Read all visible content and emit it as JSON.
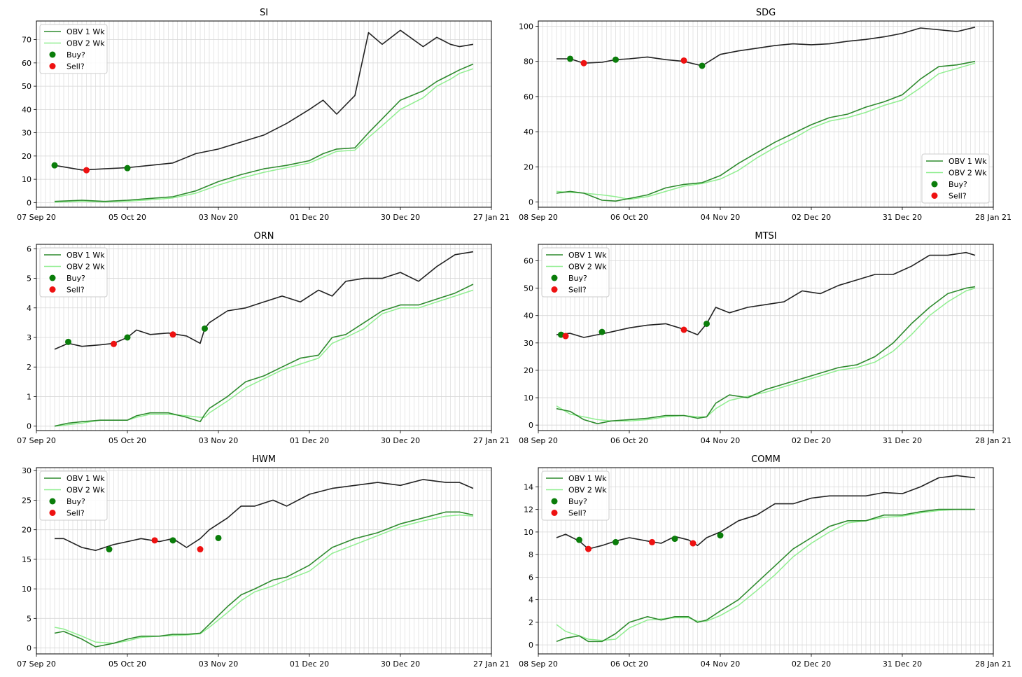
{
  "chart_data": [
    {
      "type": "line",
      "title": "SI",
      "x_ticks": [
        "07 Sep 20",
        "05 Oct 20",
        "03 Nov 20",
        "01 Dec 20",
        "30 Dec 20",
        "27 Jan 21"
      ],
      "ylim": [
        -2,
        78
      ],
      "y_ticks": [
        0,
        10,
        20,
        30,
        40,
        50,
        60,
        70
      ],
      "legend_position": "upper left",
      "legend": [
        "OBV 1 Wk",
        "OBV 2 Wk",
        "Buy?",
        "Sell?"
      ],
      "colors": {
        "price": "#222222",
        "obv1": "#2e8b2e",
        "obv2": "#90ee90",
        "buy": "#0a7d0a",
        "sell": "#ee1111"
      },
      "x": [
        0.04,
        0.1,
        0.15,
        0.2,
        0.25,
        0.3,
        0.35,
        0.4,
        0.45,
        0.5,
        0.55,
        0.6,
        0.63,
        0.66,
        0.7,
        0.73,
        0.76,
        0.8,
        0.85,
        0.88,
        0.91,
        0.93,
        0.96
      ],
      "price": [
        16,
        14,
        14.5,
        15,
        16,
        17,
        21,
        23,
        26,
        29,
        34,
        40,
        44,
        38,
        46,
        73,
        68,
        74,
        67,
        71,
        68,
        67,
        68
      ],
      "obv1": [
        0.5,
        1,
        0.5,
        1,
        1.8,
        2.5,
        5,
        9,
        12,
        14.5,
        16,
        18,
        21,
        23,
        23.5,
        30,
        36,
        44,
        48,
        52,
        55,
        57,
        59.5
      ],
      "obv2": [
        0.2,
        0.6,
        0.3,
        0.6,
        1.2,
        2,
        4,
        7.5,
        10.5,
        13,
        15,
        17,
        19.5,
        22,
        22.5,
        28,
        33,
        40,
        45,
        50,
        53,
        55.5,
        57.5
      ],
      "buy": [
        [
          0.04,
          16
        ],
        [
          0.2,
          14.8
        ]
      ],
      "sell": [
        [
          0.11,
          13.9
        ]
      ]
    },
    {
      "type": "line",
      "title": "SDG",
      "x_ticks": [
        "08 Sep 20",
        "06 Oct 20",
        "04 Nov 20",
        "02 Dec 20",
        "31 Dec 20",
        "28 Jan 21"
      ],
      "ylim": [
        -3,
        103
      ],
      "y_ticks": [
        0,
        20,
        40,
        60,
        80,
        100
      ],
      "legend_position": "lower right",
      "legend": [
        "OBV 1 Wk",
        "OBV 2 Wk",
        "Buy?",
        "Sell?"
      ],
      "colors": {
        "price": "#222222",
        "obv1": "#2e8b2e",
        "obv2": "#90ee90",
        "buy": "#0a7d0a",
        "sell": "#ee1111"
      },
      "x": [
        0.04,
        0.07,
        0.1,
        0.14,
        0.17,
        0.2,
        0.24,
        0.28,
        0.32,
        0.36,
        0.4,
        0.44,
        0.48,
        0.52,
        0.56,
        0.6,
        0.64,
        0.68,
        0.72,
        0.76,
        0.8,
        0.84,
        0.88,
        0.92,
        0.96
      ],
      "price": [
        81.5,
        81.5,
        79,
        79.5,
        81,
        81.5,
        82.5,
        81,
        80,
        77.5,
        84,
        86,
        87.5,
        89,
        90,
        89.5,
        90,
        91.5,
        92.5,
        94,
        96,
        99,
        98,
        97,
        99.5
      ],
      "obv1": [
        5,
        6,
        5,
        1,
        0.5,
        2,
        4,
        8,
        10,
        11,
        15,
        22,
        28,
        34,
        39,
        44,
        48,
        50,
        54,
        57,
        61,
        70,
        77,
        78,
        80
      ],
      "obv2": [
        6,
        5.5,
        5,
        4,
        3,
        1.5,
        3,
        6,
        9,
        10.5,
        13,
        18,
        25,
        31,
        36,
        42,
        46,
        48,
        51,
        55,
        58,
        65,
        73,
        76,
        79
      ],
      "buy": [
        [
          0.07,
          81.5
        ],
        [
          0.17,
          81
        ],
        [
          0.36,
          77.5
        ]
      ],
      "sell": [
        [
          0.1,
          79
        ],
        [
          0.32,
          80.5
        ]
      ]
    },
    {
      "type": "line",
      "title": "ORN",
      "x_ticks": [
        "07 Sep 20",
        "05 Oct 20",
        "03 Nov 20",
        "01 Dec 20",
        "30 Dec 20",
        "27 Jan 21"
      ],
      "ylim": [
        -0.15,
        6.15
      ],
      "y_ticks": [
        0,
        1,
        2,
        3,
        4,
        5,
        6
      ],
      "legend_position": "upper left",
      "legend": [
        "OBV 1 Wk",
        "OBV 2 Wk",
        "Buy?",
        "Sell?"
      ],
      "colors": {
        "price": "#222222",
        "obv1": "#2e8b2e",
        "obv2": "#90ee90",
        "buy": "#0a7d0a",
        "sell": "#ee1111"
      },
      "x": [
        0.04,
        0.07,
        0.1,
        0.14,
        0.17,
        0.2,
        0.22,
        0.25,
        0.29,
        0.33,
        0.36,
        0.37,
        0.38,
        0.42,
        0.46,
        0.5,
        0.54,
        0.58,
        0.62,
        0.65,
        0.68,
        0.72,
        0.76,
        0.8,
        0.84,
        0.88,
        0.92,
        0.96
      ],
      "price": [
        2.6,
        2.8,
        2.7,
        2.75,
        2.8,
        3.0,
        3.25,
        3.1,
        3.15,
        3.05,
        2.8,
        3.3,
        3.5,
        3.9,
        4.0,
        4.2,
        4.4,
        4.2,
        4.6,
        4.4,
        4.9,
        5.0,
        5.0,
        5.2,
        4.9,
        5.4,
        5.8,
        5.9
      ],
      "obv1": [
        0,
        0.1,
        0.15,
        0.2,
        0.2,
        0.2,
        0.35,
        0.45,
        0.45,
        0.3,
        0.15,
        0.4,
        0.6,
        1.0,
        1.5,
        1.7,
        2.0,
        2.3,
        2.4,
        3.0,
        3.1,
        3.5,
        3.9,
        4.1,
        4.1,
        4.3,
        4.5,
        4.8
      ],
      "obv2": [
        0,
        0.05,
        0.1,
        0.2,
        0.2,
        0.2,
        0.3,
        0.4,
        0.4,
        0.35,
        0.3,
        0.3,
        0.45,
        0.85,
        1.3,
        1.6,
        1.9,
        2.1,
        2.3,
        2.8,
        3.0,
        3.3,
        3.8,
        4.0,
        4.0,
        4.2,
        4.4,
        4.6
      ],
      "buy": [
        [
          0.07,
          2.85
        ],
        [
          0.2,
          3.0
        ],
        [
          0.37,
          3.3
        ]
      ],
      "sell": [
        [
          0.17,
          2.78
        ],
        [
          0.3,
          3.1
        ]
      ]
    },
    {
      "type": "line",
      "title": "MTSI",
      "x_ticks": [
        "08 Sep 20",
        "06 Oct 20",
        "04 Nov 20",
        "02 Dec 20",
        "31 Dec 20",
        "28 Jan 21"
      ],
      "ylim": [
        -2,
        66
      ],
      "y_ticks": [
        0,
        10,
        20,
        30,
        40,
        50,
        60
      ],
      "legend_position": "upper left",
      "legend": [
        "OBV 1 Wk",
        "OBV 2 Wk",
        "Buy?",
        "Sell?"
      ],
      "colors": {
        "price": "#222222",
        "obv1": "#2e8b2e",
        "obv2": "#90ee90",
        "buy": "#0a7d0a",
        "sell": "#ee1111"
      },
      "x": [
        0.04,
        0.07,
        0.1,
        0.13,
        0.16,
        0.2,
        0.24,
        0.28,
        0.32,
        0.35,
        0.37,
        0.39,
        0.42,
        0.46,
        0.5,
        0.54,
        0.58,
        0.62,
        0.66,
        0.7,
        0.74,
        0.78,
        0.82,
        0.86,
        0.9,
        0.94,
        0.96
      ],
      "price": [
        33,
        33.5,
        32,
        33,
        34,
        35.5,
        36.5,
        37,
        35,
        33,
        37,
        43,
        41,
        43,
        44,
        45,
        49,
        48,
        51,
        53,
        55,
        55,
        58,
        62,
        62,
        63,
        62
      ],
      "obv1": [
        6,
        5,
        2,
        0.5,
        1.5,
        2,
        2.5,
        3.5,
        3.5,
        2.5,
        3,
        8,
        11,
        10,
        13,
        15,
        17,
        19,
        21,
        22,
        25,
        30,
        37,
        43,
        48,
        50,
        50.5
      ],
      "obv2": [
        7,
        4,
        3,
        2,
        1.5,
        1.5,
        2,
        3,
        3.5,
        3,
        3,
        6,
        9,
        10.5,
        12,
        14,
        16,
        18,
        20,
        21,
        23,
        27,
        33,
        40,
        45,
        49,
        50
      ],
      "buy": [
        [
          0.05,
          33
        ],
        [
          0.14,
          34
        ],
        [
          0.37,
          37
        ]
      ],
      "sell": [
        [
          0.06,
          32.5
        ],
        [
          0.32,
          34.8
        ]
      ]
    },
    {
      "type": "line",
      "title": "HWM",
      "x_ticks": [
        "07 Sep 20",
        "05 Oct 20",
        "03 Nov 20",
        "01 Dec 20",
        "30 Dec 20",
        "27 Jan 21"
      ],
      "ylim": [
        -1,
        30.5
      ],
      "y_ticks": [
        0,
        5,
        10,
        15,
        20,
        25,
        30
      ],
      "legend_position": "upper left",
      "legend": [
        "OBV 1 Wk",
        "OBV 2 Wk",
        "Buy?",
        "Sell?"
      ],
      "colors": {
        "price": "#222222",
        "obv1": "#2e8b2e",
        "obv2": "#90ee90",
        "buy": "#0a7d0a",
        "sell": "#ee1111"
      },
      "x": [
        0.04,
        0.06,
        0.1,
        0.13,
        0.17,
        0.2,
        0.23,
        0.27,
        0.3,
        0.33,
        0.36,
        0.38,
        0.42,
        0.45,
        0.48,
        0.52,
        0.55,
        0.6,
        0.65,
        0.7,
        0.75,
        0.8,
        0.85,
        0.9,
        0.93,
        0.96
      ],
      "price": [
        18.5,
        18.5,
        17,
        16.5,
        17.5,
        18,
        18.5,
        18,
        18.5,
        17,
        18.5,
        20,
        22,
        24,
        24,
        25,
        24,
        26,
        27,
        27.5,
        28,
        27.5,
        28.5,
        28,
        28,
        27
      ],
      "obv1": [
        2.5,
        2.8,
        1.5,
        0.2,
        0.8,
        1.5,
        2.0,
        2.0,
        2.3,
        2.3,
        2.5,
        4,
        7,
        9,
        10,
        11.5,
        12,
        14,
        17,
        18.5,
        19.5,
        21,
        22,
        23,
        23,
        22.5
      ],
      "obv2": [
        3.5,
        3.2,
        2.0,
        1.0,
        0.8,
        1.2,
        1.8,
        2.0,
        2.1,
        2.2,
        2.4,
        3.5,
        6,
        8,
        9.5,
        10.5,
        11.5,
        13,
        16,
        17.5,
        19,
        20.5,
        21.5,
        22.3,
        22.5,
        22.3
      ],
      "buy": [
        [
          0.16,
          16.7
        ],
        [
          0.3,
          18.2
        ],
        [
          0.4,
          18.6
        ]
      ],
      "sell": [
        [
          0.26,
          18.2
        ],
        [
          0.36,
          16.7
        ]
      ]
    },
    {
      "type": "line",
      "title": "COMM",
      "x_ticks": [
        "08 Sep 20",
        "06 Oct 20",
        "04 Nov 20",
        "02 Dec 20",
        "31 Dec 20",
        "28 Jan 21"
      ],
      "ylim": [
        -0.8,
        15.7
      ],
      "y_ticks": [
        0,
        2,
        4,
        6,
        8,
        10,
        12,
        14
      ],
      "legend_position": "upper left",
      "legend": [
        "OBV 1 Wk",
        "OBV 2 Wk",
        "Buy?",
        "Sell?"
      ],
      "colors": {
        "price": "#222222",
        "obv1": "#2e8b2e",
        "obv2": "#90ee90",
        "buy": "#0a7d0a",
        "sell": "#ee1111"
      },
      "x": [
        0.04,
        0.06,
        0.09,
        0.11,
        0.14,
        0.17,
        0.2,
        0.24,
        0.27,
        0.3,
        0.33,
        0.35,
        0.37,
        0.4,
        0.44,
        0.48,
        0.52,
        0.56,
        0.6,
        0.64,
        0.68,
        0.72,
        0.76,
        0.8,
        0.84,
        0.88,
        0.92,
        0.96
      ],
      "price": [
        9.5,
        9.8,
        9.2,
        8.5,
        8.8,
        9.2,
        9.5,
        9.2,
        9.0,
        9.6,
        9.3,
        8.8,
        9.5,
        10,
        11,
        11.5,
        12.5,
        12.5,
        13,
        13.2,
        13.2,
        13.2,
        13.5,
        13.4,
        14,
        14.8,
        15,
        14.8
      ],
      "obv1": [
        0.3,
        0.6,
        0.8,
        0.3,
        0.3,
        1.0,
        2.0,
        2.5,
        2.2,
        2.5,
        2.5,
        2.0,
        2.2,
        3.0,
        4.0,
        5.5,
        7.0,
        8.5,
        9.5,
        10.5,
        11,
        11,
        11.5,
        11.5,
        11.8,
        12,
        12,
        12
      ],
      "obv2": [
        1.8,
        1.2,
        0.8,
        0.5,
        0.4,
        0.5,
        1.5,
        2.2,
        2.3,
        2.4,
        2.4,
        2.1,
        2.1,
        2.6,
        3.5,
        4.8,
        6.2,
        7.8,
        9.0,
        10,
        10.8,
        11,
        11.3,
        11.4,
        11.7,
        11.9,
        12,
        12
      ],
      "buy": [
        [
          0.09,
          9.3
        ],
        [
          0.17,
          9.1
        ],
        [
          0.3,
          9.4
        ],
        [
          0.4,
          9.7
        ]
      ],
      "sell": [
        [
          0.11,
          8.5
        ],
        [
          0.25,
          9.1
        ],
        [
          0.34,
          9.0
        ]
      ]
    }
  ]
}
